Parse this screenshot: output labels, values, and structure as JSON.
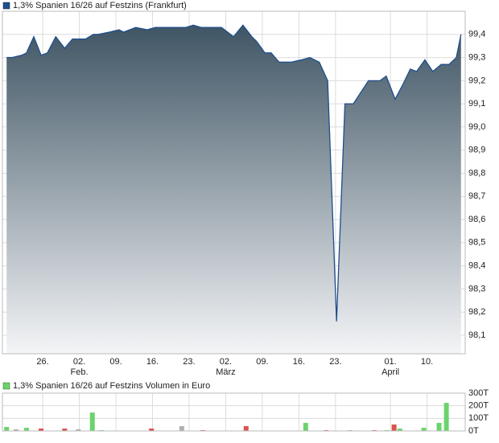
{
  "chart_data": [
    {
      "type": "area",
      "series": [
        {
          "name": "1,3% Spanien 16/26 auf Festzins (Frankfurt)",
          "color": "#1f4e8c",
          "values": [
            99.3,
            99.3,
            99.31,
            99.32,
            99.39,
            99.31,
            99.32,
            99.39,
            99.34,
            99.38,
            99.38,
            99.4,
            99.4,
            99.41,
            99.42,
            99.41,
            99.43,
            99.42,
            99.43,
            99.43,
            99.44,
            99.43,
            99.43,
            99.39,
            99.44,
            99.39,
            99.37,
            99.32,
            99.32,
            99.28,
            99.28,
            99.29,
            99.3,
            99.28,
            99.2,
            98.16,
            99.1,
            99.1,
            99.2,
            99.2,
            99.22,
            99.12,
            99.18,
            99.25,
            99.24,
            99.29,
            99.24,
            99.27,
            99.27,
            99.3,
            99.4
          ]
        }
      ],
      "x": [
        -6.9,
        -5.8,
        -4,
        -3.1,
        -1.7,
        -0.3,
        0.9,
        2.5,
        4.2,
        5.7,
        8.2,
        9.7,
        10.6,
        12.8,
        14.6,
        15.5,
        17.8,
        20,
        21.5,
        27.4,
        28.8,
        30.3,
        34.2,
        36.5,
        38.3,
        40,
        40.9,
        42.5,
        43.7,
        45.2,
        47.5,
        49.5,
        51.1,
        52.9,
        54.5,
        56.2,
        57.8,
        59.4,
        62.3,
        64.5,
        65.7,
        67.4,
        68.8,
        70.3,
        71.5,
        73.1,
        74.6,
        76.2,
        77.7,
        79.1,
        80
      ],
      "xlim": [
        -7.7,
        80.8
      ],
      "xticks": [
        {
          "value": 0,
          "label": "26."
        },
        {
          "value": 7,
          "label": "02."
        },
        {
          "value": 14,
          "label": "09."
        },
        {
          "value": 21,
          "label": "16."
        },
        {
          "value": 28,
          "label": "23."
        },
        {
          "value": 35,
          "label": "02."
        },
        {
          "value": 42,
          "label": "09."
        },
        {
          "value": 49,
          "label": "16."
        },
        {
          "value": 56,
          "label": "23."
        },
        {
          "value": 66.5,
          "label": "01."
        },
        {
          "value": 73.5,
          "label": "10."
        }
      ],
      "x_month_labels": [
        {
          "value": 7,
          "label": "Feb."
        },
        {
          "value": 35,
          "label": "März"
        },
        {
          "value": 66.5,
          "label": "April"
        }
      ],
      "ylim": [
        98.02,
        99.5
      ],
      "yticks": [
        {
          "value": 98.1,
          "label": "98,1"
        },
        {
          "value": 98.2,
          "label": "98,2"
        },
        {
          "value": 98.3,
          "label": "98,3"
        },
        {
          "value": 98.4,
          "label": "98,4"
        },
        {
          "value": 98.5,
          "label": "98,5"
        },
        {
          "value": 98.6,
          "label": "98,6"
        },
        {
          "value": 98.7,
          "label": "98,7"
        },
        {
          "value": 98.8,
          "label": "98,8"
        },
        {
          "value": 98.9,
          "label": "98,9"
        },
        {
          "value": 99.0,
          "label": "99,0"
        },
        {
          "value": 99.1,
          "label": "99,1"
        },
        {
          "value": 99.2,
          "label": "99,2"
        },
        {
          "value": 99.3,
          "label": "99,3"
        },
        {
          "value": 99.4,
          "label": "99,4"
        }
      ],
      "grid": true
    },
    {
      "type": "bar",
      "series": [
        {
          "name": "1,3% Spanien 16/26 auf Festzins Volumen in Euro",
          "color": "#6cd36c",
          "values": [
            32,
            13,
            25,
            19,
            19,
            13,
            146,
            6,
            19,
            38,
            6,
            38,
            64,
            6,
            6,
            6,
            6,
            51,
            19,
            25,
            64,
            223
          ],
          "bar_colors": [
            "#6cd36c",
            "#b0b0b0",
            "#6cd36c",
            "#d9534f",
            "#d9534f",
            "#b0b0b0",
            "#6cd36c",
            "#6cd36c",
            "#d9534f",
            "#b0b0b0",
            "#d9534f",
            "#d9534f",
            "#6cd36c",
            "#d9534f",
            "#b0b0b0",
            "#d9534f",
            "#6cd36c",
            "#d9534f",
            "#6cd36c",
            "#6cd36c",
            "#6cd36c",
            "#6cd36c"
          ]
        }
      ],
      "x": [
        -6.9,
        -5.1,
        -3.1,
        -0.3,
        4.2,
        6.8,
        9.5,
        11.2,
        20.8,
        26.6,
        30.6,
        38.9,
        50.3,
        54.2,
        58.8,
        63.4,
        65.8,
        67.2,
        68.3,
        72.9,
        75.8,
        77.2
      ],
      "xlim": [
        -7.7,
        80.8
      ],
      "ylim": [
        0,
        300
      ],
      "yticks": [
        {
          "value": 0,
          "label": "0T"
        },
        {
          "value": 100,
          "label": "100T"
        },
        {
          "value": 200,
          "label": "200T"
        },
        {
          "value": 300,
          "label": "300T"
        }
      ],
      "grid": true
    }
  ]
}
